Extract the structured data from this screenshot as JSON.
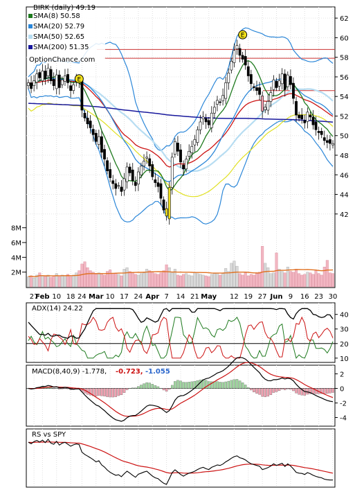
{
  "chart_data": {
    "type": "line",
    "ticker_label": "BIRK (daily) 49.19",
    "watermark": "OptionChance.com",
    "legend": [
      {
        "label": "SMA(8) 50.58",
        "color": "#1e7a1e"
      },
      {
        "label": "SMA(20) 52.79",
        "color": "#2a86d8"
      },
      {
        "label": "SMA(50) 52.65",
        "color": "#b7ddf2"
      },
      {
        "label": "SMA(200) 51.35",
        "color": "#17179c"
      }
    ],
    "colors": {
      "sma8": "#1e7a1e",
      "sma20": "#2a86d8",
      "sma50": "#b7ddf2",
      "sma200": "#17179c",
      "ema": "#cc1111",
      "bb_low": "#e0e020",
      "volume_up": "#f2b6c2",
      "volume_down": "#d9d9d9",
      "vol_avg": "#e07020",
      "adx": "#000000",
      "di_plus": "#1e7a1e",
      "di_minus": "#cc1111",
      "hline": "#cc3333"
    },
    "price_axis": {
      "ticks": [
        "62",
        "60",
        "58",
        "56",
        "54",
        "52",
        "50",
        "48",
        "46",
        "44",
        "42"
      ],
      "ylim": [
        40.5,
        63
      ]
    },
    "x_ticks": [
      {
        "label": "27",
        "i": 2
      },
      {
        "label": "Feb",
        "i": 5,
        "bold": true
      },
      {
        "label": "10",
        "i": 10
      },
      {
        "label": "18",
        "i": 15
      },
      {
        "label": "24",
        "i": 19
      },
      {
        "label": "Mar",
        "i": 24,
        "bold": true
      },
      {
        "label": "10",
        "i": 29
      },
      {
        "label": "17",
        "i": 34
      },
      {
        "label": "24",
        "i": 39
      },
      {
        "label": "Apr",
        "i": 44,
        "bold": true
      },
      {
        "label": "7",
        "i": 49
      },
      {
        "label": "14",
        "i": 54
      },
      {
        "label": "21",
        "i": 59
      },
      {
        "label": "May",
        "i": 64,
        "bold": true
      },
      {
        "label": "12",
        "i": 73
      },
      {
        "label": "19",
        "i": 78
      },
      {
        "label": "27",
        "i": 83
      },
      {
        "label": "Jun",
        "i": 88,
        "bold": true
      },
      {
        "label": "9",
        "i": 93
      },
      {
        "label": "16",
        "i": 98
      },
      {
        "label": "23",
        "i": 103
      },
      {
        "label": "30",
        "i": 108
      }
    ],
    "horizontal_lines": [
      58.8,
      57.9,
      54.6
    ],
    "earnings_markers": [
      {
        "i": 18,
        "y": 55.8,
        "label": "E"
      },
      {
        "i": 76,
        "y": 60.3,
        "label": "E"
      }
    ],
    "volume_axis": {
      "ticks": [
        "8M",
        "6M",
        "4M",
        "2M"
      ],
      "ylim": [
        0,
        9
      ]
    },
    "adx_panel": {
      "label": "ADX(14) 24.22",
      "ticks": [
        "40",
        "30",
        "20",
        "10"
      ],
      "ylim": [
        8,
        47
      ],
      "ref_line": 20
    },
    "macd_panel": {
      "label": "MACD(8,40,9) -1.778,",
      "value2": "-0.723,",
      "value3": "-1.055",
      "ticks": [
        "2",
        "0",
        "-2",
        "-4"
      ],
      "ylim": [
        -5,
        3
      ]
    },
    "rs_panel": {
      "label": "RS vs SPY"
    },
    "close": [
      55.4,
      54.8,
      55.6,
      56.3,
      55.9,
      56.6,
      55.8,
      56.9,
      55.6,
      55.1,
      56.2,
      54.9,
      55.7,
      56.1,
      55.4,
      54.6,
      55.2,
      55.6,
      55.5,
      52.6,
      51.8,
      51.2,
      50.8,
      50.1,
      49.4,
      49.9,
      48.3,
      47.6,
      46.4,
      45.7,
      45.1,
      44.6,
      44.9,
      44.3,
      45.6,
      46.8,
      46.2,
      45.4,
      44.9,
      46.3,
      46.9,
      47.4,
      47.8,
      46.9,
      45.8,
      45.2,
      44.8,
      43.6,
      42.4,
      41.8,
      44.7,
      47.8,
      49.4,
      48.4,
      47.3,
      46.6,
      47.6,
      48.4,
      48.9,
      49.6,
      50.6,
      51.4,
      51.9,
      51.4,
      51.1,
      52.3,
      52.9,
      53.6,
      53.4,
      54.1,
      55.4,
      56.4,
      57.6,
      58.7,
      59.2,
      58.2,
      57.8,
      57.2,
      56.1,
      55.3,
      54.9,
      54.6,
      54.2,
      52.5,
      52.9,
      53.5,
      54.4,
      55.7,
      54.9,
      55.6,
      56.3,
      54.7,
      56.2,
      55.2,
      53.8,
      52.1,
      51.8,
      51.7,
      51.3,
      52.4,
      51.9,
      51.1,
      50.6,
      50.3,
      50.1,
      49.5,
      49.3,
      49.2,
      49.19
    ],
    "volume": [
      1.4,
      1.5,
      1.2,
      1.6,
      1.9,
      1.5,
      1.4,
      1.6,
      1.3,
      1.5,
      1.8,
      1.4,
      1.6,
      1.5,
      1.7,
      1.4,
      1.6,
      1.9,
      2.2,
      3.1,
      3.4,
      2.6,
      2.2,
      2.0,
      1.7,
      1.9,
      1.8,
      1.6,
      2.1,
      2.3,
      1.8,
      1.9,
      1.7,
      1.5,
      2.4,
      2.6,
      2.1,
      1.9,
      1.7,
      1.6,
      1.8,
      1.9,
      2.4,
      2.2,
      2.0,
      1.8,
      1.7,
      1.9,
      2.2,
      3.0,
      2.6,
      1.9,
      2.4,
      1.6,
      1.5,
      1.7,
      1.8,
      1.6,
      1.5,
      1.9,
      1.8,
      1.7,
      1.6,
      1.5,
      1.4,
      1.7,
      1.8,
      1.9,
      1.6,
      1.8,
      2.5,
      2.1,
      3.2,
      3.5,
      2.8,
      1.8,
      1.6,
      1.9,
      1.5,
      1.7,
      1.6,
      1.8,
      2.0,
      5.5,
      3.2,
      2.6,
      1.8,
      1.9,
      4.6,
      2.4,
      2.1,
      1.9,
      2.7,
      2.1,
      2.0,
      2.4,
      1.8,
      1.6,
      1.7,
      2.0,
      1.9,
      1.7,
      2.2,
      1.8,
      1.6,
      2.7,
      3.6,
      1.9,
      1.8
    ],
    "rs_values": [
      57.8,
      57.3,
      58.1,
      58.5,
      57.9,
      58.6,
      57.7,
      58.9,
      57.5,
      57.1,
      58.2,
      56.8,
      57.5,
      57.8,
      57.1,
      56.4,
      56.9,
      57.2,
      57.0,
      54.2,
      53.4,
      52.8,
      52.2,
      51.5,
      50.7,
      51.1,
      49.6,
      48.8,
      47.7,
      46.9,
      46.3,
      45.8,
      46.0,
      45.3,
      46.4,
      47.3,
      46.6,
      45.8,
      45.1,
      46.2,
      46.6,
      47.0,
      47.3,
      46.4,
      45.5,
      44.9,
      44.6,
      43.7,
      42.9,
      42.5,
      44.6,
      46.8,
      47.8,
      47.0,
      46.1,
      45.5,
      46.1,
      46.6,
      46.9,
      47.3,
      47.9,
      48.4,
      48.7,
      48.2,
      47.9,
      48.7,
      49.1,
      49.6,
      49.4,
      49.9,
      50.7,
      51.3,
      52.0,
      52.6,
      52.9,
      52.2,
      51.9,
      51.4,
      50.6,
      50.0,
      49.7,
      49.4,
      49.1,
      47.9,
      48.2,
      48.6,
      49.2,
      50.0,
      49.4,
      49.8,
      50.2,
      49.0,
      50.0,
      49.2,
      48.1,
      46.9,
      46.6,
      46.5,
      46.1,
      46.8,
      46.4,
      45.8,
      45.4,
      45.1,
      44.9,
      44.4,
      44.2,
      44.1,
      44.1
    ]
  }
}
